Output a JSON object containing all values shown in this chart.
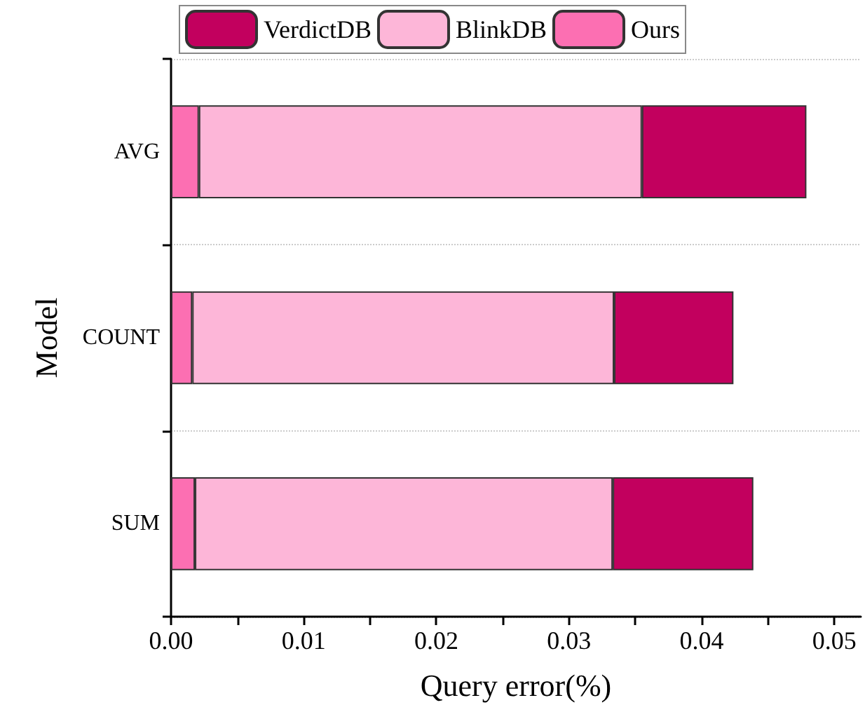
{
  "chart_data": {
    "type": "bar",
    "orientation": "horizontal",
    "stacked": true,
    "xlabel": "Query error(%)",
    "ylabel": "Model",
    "categories": [
      "AVG",
      "COUNT",
      "SUM"
    ],
    "series": [
      {
        "name": "Ours",
        "color": "#fc6fb2",
        "values": [
          0.0021,
          0.0016,
          0.0018
        ]
      },
      {
        "name": "BlinkDB",
        "color": "#fdb6d8",
        "values": [
          0.0334,
          0.0318,
          0.0315
        ]
      },
      {
        "name": "VerdictDB",
        "color": "#c2005e",
        "values": [
          0.0124,
          0.009,
          0.0106
        ]
      }
    ],
    "xlim": [
      0,
      0.052
    ],
    "xticks": [
      {
        "value": 0,
        "label": "0.00"
      },
      {
        "value": 0.005,
        "label": null
      },
      {
        "value": 0.01,
        "label": "0.01"
      },
      {
        "value": 0.015,
        "label": null
      },
      {
        "value": 0.02,
        "label": "0.02"
      },
      {
        "value": 0.025,
        "label": null
      },
      {
        "value": 0.03,
        "label": "0.03"
      },
      {
        "value": 0.035,
        "label": null
      },
      {
        "value": 0.04,
        "label": "0.04"
      },
      {
        "value": 0.045,
        "label": null
      },
      {
        "value": 0.05,
        "label": "0.05"
      }
    ],
    "grid": "y",
    "legend": "top"
  }
}
